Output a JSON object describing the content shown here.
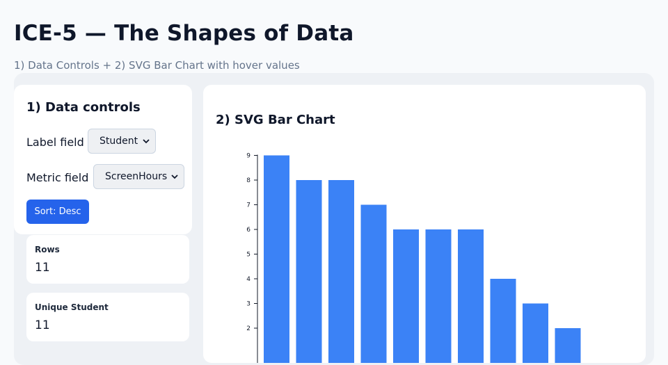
{
  "header": {
    "title": "ICE-5 — The Shapes of Data",
    "subtitle": "1) Data Controls + 2) SVG Bar Chart with hover values"
  },
  "controls": {
    "title": "1) Data controls",
    "label_field": {
      "label": "Label field",
      "value": "Student"
    },
    "metric_field": {
      "label": "Metric field",
      "value": "ScreenHours"
    },
    "sort_button": "Sort: Desc"
  },
  "stats": [
    {
      "label": "Rows",
      "value": "11"
    },
    {
      "label": "Unique Student",
      "value": "11"
    }
  ],
  "chart": {
    "title": "2) SVG Bar Chart"
  },
  "colors": {
    "bar": "#3b82f6",
    "button": "#2563eb"
  },
  "chart_data": {
    "type": "bar",
    "title": "2) SVG Bar Chart",
    "values": [
      9,
      8,
      8,
      7,
      6,
      6,
      6,
      4,
      3,
      2
    ],
    "y_ticks": [
      2,
      3,
      4,
      5,
      6,
      7,
      8,
      9
    ],
    "ylim": [
      0,
      9
    ],
    "grid": false
  }
}
